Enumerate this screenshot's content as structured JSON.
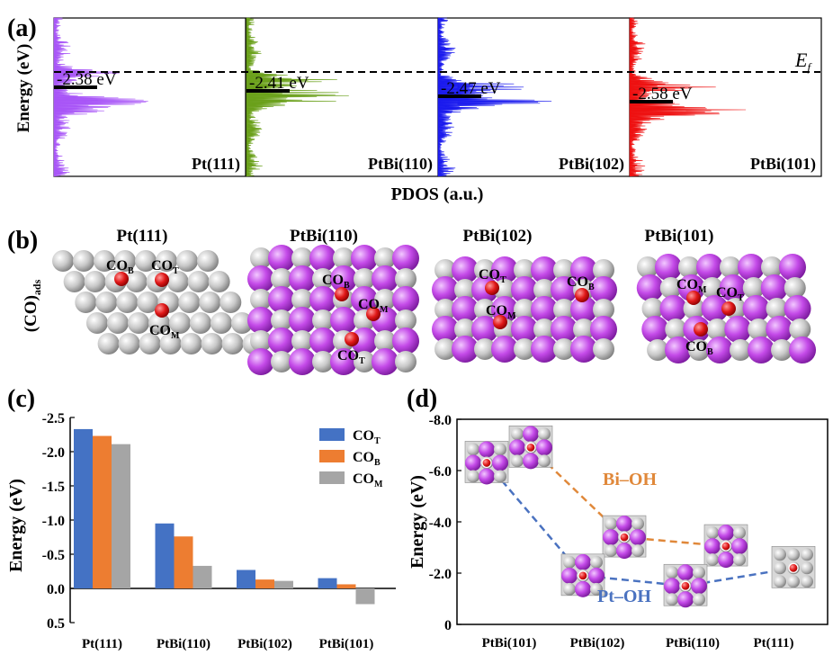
{
  "panel_a": {
    "label": "(a)",
    "ylabel": "Energy (eV)",
    "xlabel": "PDOS (a.u.)",
    "fermi_main": "E",
    "fermi_sub": "f",
    "panels": [
      {
        "name": "Pt(111)",
        "dband": "-2.38 eV",
        "color": "#a855f7"
      },
      {
        "name": "PtBi(110)",
        "dband": "-2.41 eV",
        "color": "#6aa01a"
      },
      {
        "name": "PtBi(102)",
        "dband": "-2.47 eV",
        "color": "#1a1aee"
      },
      {
        "name": "PtBi(101)",
        "dband": "-2.58 eV",
        "color": "#ee1111"
      }
    ]
  },
  "panel_b": {
    "label": "(b)",
    "ylabel_main": "(CO)",
    "ylabel_sub": "ads",
    "structures": [
      {
        "name": "Pt(111)",
        "sites": [
          {
            "main": "CO",
            "sub": "B"
          },
          {
            "main": "CO",
            "sub": "T"
          },
          {
            "main": "CO",
            "sub": "M"
          }
        ]
      },
      {
        "name": "PtBi(110)",
        "sites": [
          {
            "main": "CO",
            "sub": "B"
          },
          {
            "main": "CO",
            "sub": "M"
          },
          {
            "main": "CO",
            "sub": "T"
          }
        ]
      },
      {
        "name": "PtBi(102)",
        "sites": [
          {
            "main": "CO",
            "sub": "T"
          },
          {
            "main": "CO",
            "sub": "B"
          },
          {
            "main": "CO",
            "sub": "M"
          }
        ]
      },
      {
        "name": "PtBi(101)",
        "sites": [
          {
            "main": "CO",
            "sub": "M"
          },
          {
            "main": "CO",
            "sub": "T"
          },
          {
            "main": "CO",
            "sub": "B"
          }
        ]
      }
    ]
  },
  "panel_c": {
    "label": "(c)",
    "chart_data": {
      "type": "bar",
      "ylabel": "Energy (eV)",
      "ylim": [
        -2.5,
        0.5
      ],
      "yticks": [
        "-2.5",
        "-2.0",
        "-1.5",
        "-1.0",
        "-0.5",
        "0.0",
        "0.5"
      ],
      "categories": [
        "Pt(111)",
        "PtBi(110)",
        "PtBi(102)",
        "PtBi(101)"
      ],
      "series": [
        {
          "name": "CO",
          "sub": "T",
          "color": "#4472c4",
          "values": [
            -2.33,
            -0.95,
            -0.27,
            -0.15
          ]
        },
        {
          "name": "CO",
          "sub": "B",
          "color": "#ed7d31",
          "values": [
            -2.23,
            -0.76,
            -0.13,
            -0.06
          ]
        },
        {
          "name": "CO",
          "sub": "M",
          "color": "#a5a5a5",
          "values": [
            -2.11,
            -0.33,
            -0.11,
            0.23
          ]
        }
      ]
    }
  },
  "panel_d": {
    "label": "(d)",
    "chart_data": {
      "type": "line",
      "ylabel": "Energy (eV)",
      "ylim": [
        0,
        -8.0
      ],
      "yticks": [
        "0",
        "-2.0",
        "-4.0",
        "-6.0",
        "-8.0"
      ],
      "categories": [
        "PtBi(101)",
        "PtBi(102)",
        "PtBi(110)",
        "Pt(111)"
      ],
      "series": [
        {
          "name": "Bi–OH",
          "color": "#e0883a",
          "values": [
            -6.9,
            -3.4,
            -3.05,
            null
          ]
        },
        {
          "name": "Pt–OH",
          "color": "#4a72c0",
          "values": [
            -6.3,
            -1.9,
            -1.5,
            -2.2
          ]
        }
      ]
    }
  }
}
